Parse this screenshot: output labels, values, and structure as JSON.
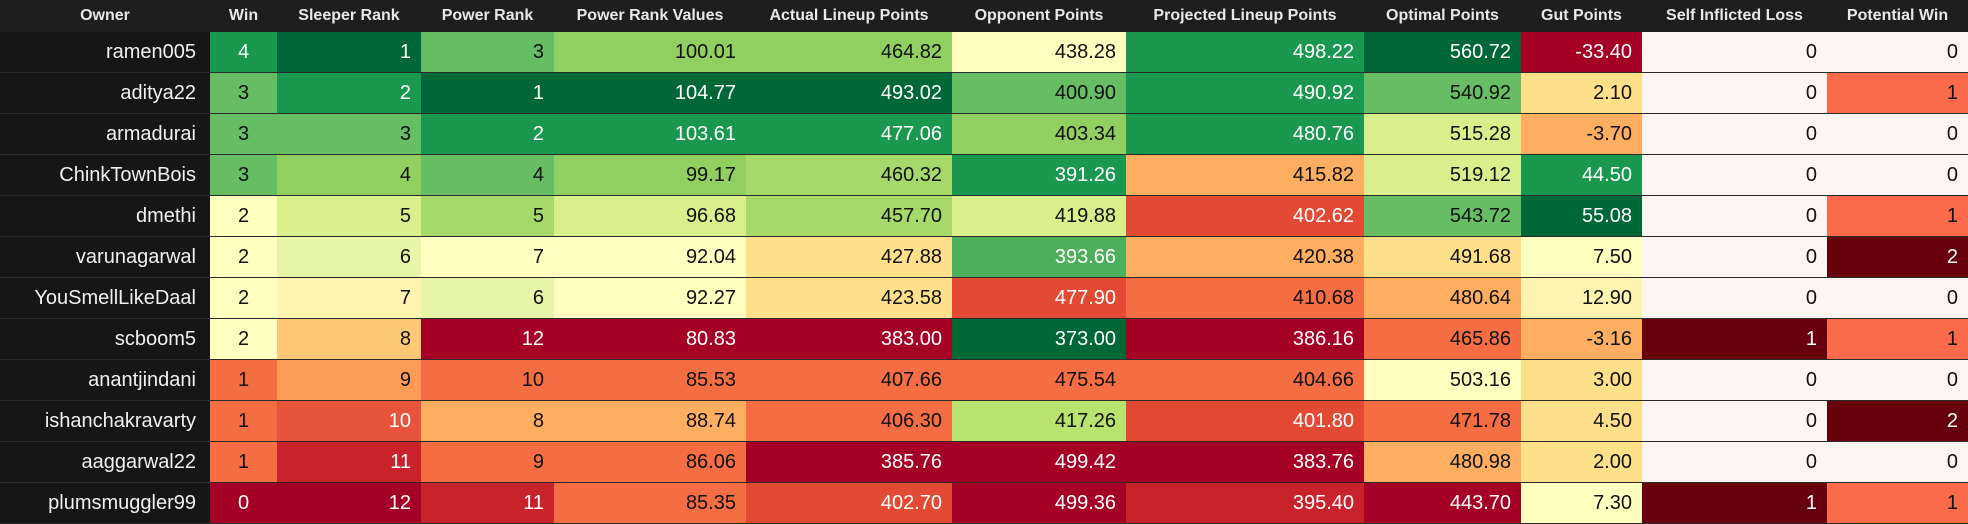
{
  "columns": [
    "Owner",
    "Win",
    "Sleeper Rank",
    "Power Rank",
    "Power Rank Values",
    "Actual Lineup Points",
    "Opponent Points",
    "Projected Lineup Points",
    "Optimal Points",
    "Gut Points",
    "Self Inflicted Loss",
    "Potential Win"
  ],
  "rows": [
    {
      "cells": [
        "ramen005",
        "4",
        "1",
        "3",
        "100.01",
        "464.82",
        "438.28",
        "498.22",
        "560.72",
        "-33.40",
        "0",
        "0"
      ],
      "bg": [
        "#161616",
        "#1a9850",
        "#006837",
        "#66bd63",
        "#91cf60",
        "#91cf60",
        "#ffffbf",
        "#1a9850",
        "#006837",
        "#a50026",
        "#fff5f0",
        "#fff5f0"
      ]
    },
    {
      "cells": [
        "aditya22",
        "3",
        "2",
        "1",
        "104.77",
        "493.02",
        "400.90",
        "490.92",
        "540.92",
        "2.10",
        "0",
        "1"
      ],
      "bg": [
        "#161616",
        "#66bd63",
        "#1a9850",
        "#006837",
        "#006837",
        "#006837",
        "#66bd63",
        "#1a9850",
        "#66bd63",
        "#fee08b",
        "#fff5f0",
        "#fb6a4a"
      ]
    },
    {
      "cells": [
        "armadurai",
        "3",
        "3",
        "2",
        "103.61",
        "477.06",
        "403.34",
        "480.76",
        "515.28",
        "-3.70",
        "0",
        "0"
      ],
      "bg": [
        "#161616",
        "#66bd63",
        "#66bd63",
        "#1a9850",
        "#1a9850",
        "#1a9850",
        "#91cf60",
        "#1a9850",
        "#d9ef8b",
        "#fdae61",
        "#fff5f0",
        "#fff5f0"
      ]
    },
    {
      "cells": [
        "ChinkTownBois",
        "3",
        "4",
        "4",
        "99.17",
        "460.32",
        "391.26",
        "415.82",
        "519.12",
        "44.50",
        "0",
        "0"
      ],
      "bg": [
        "#161616",
        "#66bd63",
        "#91cf60",
        "#66bd63",
        "#91cf60",
        "#a6d96a",
        "#1a9850",
        "#fdae61",
        "#d9ef8b",
        "#1a9850",
        "#fff5f0",
        "#fff5f0"
      ]
    },
    {
      "cells": [
        "dmethi",
        "2",
        "5",
        "5",
        "96.68",
        "457.70",
        "419.88",
        "402.62",
        "543.72",
        "55.08",
        "0",
        "1"
      ],
      "bg": [
        "#161616",
        "#ffffbf",
        "#d9ef8b",
        "#a6d96a",
        "#d9ef8b",
        "#a6d96a",
        "#d9ef8b",
        "#e34a33",
        "#66bd63",
        "#006837",
        "#fff5f0",
        "#fb6a4a"
      ]
    },
    {
      "cells": [
        "varunagarwal",
        "2",
        "6",
        "7",
        "92.04",
        "427.88",
        "393.66",
        "420.38",
        "491.68",
        "7.50",
        "0",
        "2"
      ],
      "bg": [
        "#161616",
        "#ffffbf",
        "#e6f5a7",
        "#ffffbf",
        "#ffffbf",
        "#fee08b",
        "#4daf5a",
        "#fdae61",
        "#fee08b",
        "#ffffbf",
        "#fff5f0",
        "#67000d"
      ]
    },
    {
      "cells": [
        "YouSmellLikeDaal",
        "2",
        "7",
        "6",
        "92.27",
        "423.58",
        "477.90",
        "410.68",
        "480.64",
        "12.90",
        "0",
        "0"
      ],
      "bg": [
        "#161616",
        "#ffffbf",
        "#fff3b0",
        "#e6f5a7",
        "#ffffbf",
        "#fee08b",
        "#e34a33",
        "#f46d43",
        "#fdae61",
        "#fff3b0",
        "#fff5f0",
        "#fff5f0"
      ]
    },
    {
      "cells": [
        "scboom5",
        "2",
        "8",
        "12",
        "80.83",
        "383.00",
        "373.00",
        "386.16",
        "465.86",
        "-3.16",
        "1",
        "1"
      ],
      "bg": [
        "#161616",
        "#ffffbf",
        "#fdc776",
        "#a50026",
        "#a50026",
        "#a50026",
        "#006837",
        "#a50026",
        "#f46d43",
        "#fdae61",
        "#67000d",
        "#fb6a4a"
      ]
    },
    {
      "cells": [
        "anantjindani",
        "1",
        "9",
        "10",
        "85.53",
        "407.66",
        "475.54",
        "404.66",
        "503.16",
        "3.00",
        "0",
        "0"
      ],
      "bg": [
        "#161616",
        "#f46d43",
        "#fd9a56",
        "#f46d43",
        "#f46d43",
        "#f46d43",
        "#f46d43",
        "#f46d43",
        "#ffffbf",
        "#fee08b",
        "#fff5f0",
        "#fff5f0"
      ]
    },
    {
      "cells": [
        "ishanchakravarty",
        "1",
        "10",
        "8",
        "88.74",
        "406.30",
        "417.26",
        "401.80",
        "471.78",
        "4.50",
        "0",
        "2"
      ],
      "bg": [
        "#161616",
        "#f46d43",
        "#e8533c",
        "#fdae61",
        "#fdae61",
        "#f46d43",
        "#b8e36e",
        "#e34a33",
        "#f46d43",
        "#fee08b",
        "#fff5f0",
        "#67000d"
      ]
    },
    {
      "cells": [
        "aaggarwal22",
        "1",
        "11",
        "9",
        "86.06",
        "385.76",
        "499.42",
        "383.76",
        "480.98",
        "2.00",
        "0",
        "0"
      ],
      "bg": [
        "#161616",
        "#f46d43",
        "#c8232a",
        "#f46d43",
        "#f46d43",
        "#a50026",
        "#a50026",
        "#a50026",
        "#fdae61",
        "#fee08b",
        "#fff5f0",
        "#fff5f0"
      ]
    },
    {
      "cells": [
        "plumsmuggler99",
        "0",
        "12",
        "11",
        "85.35",
        "402.70",
        "499.36",
        "395.40",
        "443.70",
        "7.30",
        "1",
        "1"
      ],
      "bg": [
        "#161616",
        "#a50026",
        "#a50026",
        "#c8232a",
        "#f46d43",
        "#e34a33",
        "#a50026",
        "#c8232a",
        "#a50026",
        "#ffffbf",
        "#67000d",
        "#fb6a4a"
      ]
    }
  ]
}
